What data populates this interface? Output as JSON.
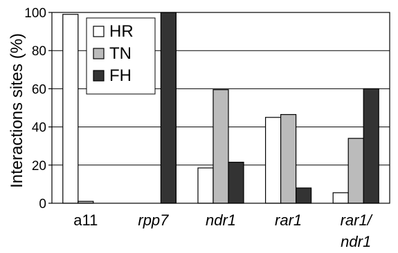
{
  "chart_data": {
    "type": "bar",
    "title": "",
    "xlabel": "",
    "ylabel": "Interactions sites (%)",
    "ylim": [
      0,
      100
    ],
    "yticks": [
      0,
      20,
      40,
      60,
      80,
      100
    ],
    "grid": "horizontal",
    "legend_position": "top-left",
    "categories": [
      {
        "lines": [
          "a11"
        ],
        "italic": false
      },
      {
        "lines": [
          "rpp7"
        ],
        "italic": true
      },
      {
        "lines": [
          "ndr1"
        ],
        "italic": true
      },
      {
        "lines": [
          "rar1"
        ],
        "italic": true
      },
      {
        "lines": [
          "rar1/",
          "ndr1"
        ],
        "italic": true
      }
    ],
    "series": [
      {
        "name": "HR",
        "color": "#ffffff",
        "values": [
          99,
          0,
          18.5,
          45,
          5.5
        ]
      },
      {
        "name": "TN",
        "color": "#bbbbbb",
        "values": [
          1,
          0,
          59.5,
          46.5,
          34
        ]
      },
      {
        "name": "FH",
        "color": "#333333",
        "values": [
          0,
          100,
          21.5,
          8,
          60
        ]
      }
    ]
  }
}
